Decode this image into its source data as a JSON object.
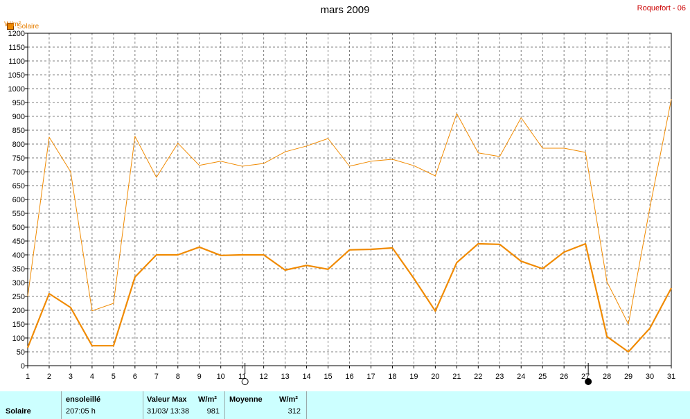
{
  "header": {
    "title": "mars 2009",
    "station": "Roquefort - 06",
    "unit": "W/m²",
    "legend": "Solaire"
  },
  "chart_data": {
    "type": "line",
    "title": "mars 2009",
    "ylabel": "W/m²",
    "x": [
      1,
      2,
      3,
      4,
      5,
      6,
      7,
      8,
      9,
      10,
      11,
      12,
      13,
      14,
      15,
      16,
      17,
      18,
      19,
      20,
      21,
      22,
      23,
      24,
      25,
      26,
      27,
      28,
      29,
      30,
      31
    ],
    "ylim": [
      0,
      1200
    ],
    "yticks": [
      0,
      50,
      100,
      150,
      200,
      250,
      300,
      350,
      400,
      450,
      500,
      550,
      600,
      650,
      700,
      750,
      800,
      850,
      900,
      950,
      1000,
      1050,
      1100,
      1150,
      1200
    ],
    "grid": true,
    "legend_position": "top-left",
    "series": [
      {
        "name": "Solaire",
        "color": "#f08a00",
        "values": [
          65,
          260,
          210,
          72,
          72,
          320,
          400,
          400,
          428,
          398,
          400,
          400,
          345,
          362,
          348,
          418,
          420,
          425,
          315,
          197,
          372,
          440,
          438,
          377,
          350,
          410,
          440,
          105,
          50,
          135,
          280
        ]
      },
      {
        "color": "#f08a00",
        "values": [
          250,
          825,
          700,
          198,
          225,
          828,
          680,
          803,
          723,
          738,
          720,
          730,
          772,
          793,
          820,
          720,
          738,
          745,
          722,
          685,
          910,
          768,
          755,
          895,
          785,
          785,
          770,
          303,
          150,
          570,
          962
        ]
      }
    ],
    "markers": [
      {
        "day": 11,
        "symbol": "open-circle"
      },
      {
        "day": 27,
        "symbol": "filled-circle"
      }
    ]
  },
  "footer": {
    "row_label": "Solaire",
    "sunshine_label": "ensoleillé",
    "sunshine_value": "207:05 h",
    "max_label": "Valeur Max",
    "max_unit": "W/m²",
    "max_date": "31/03/  13:38",
    "max_value": "981",
    "avg_label": "Moyenne",
    "avg_unit": "W/m²",
    "avg_value": "312"
  }
}
